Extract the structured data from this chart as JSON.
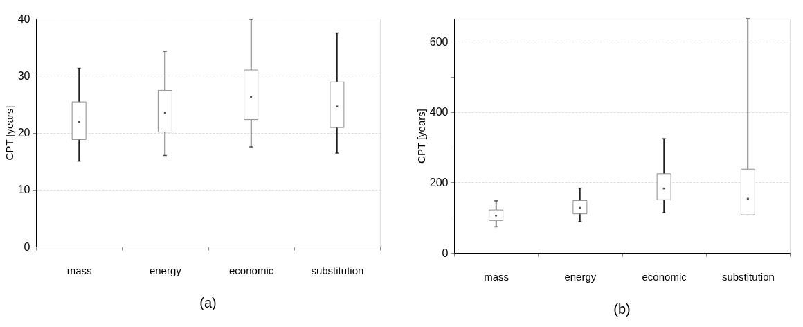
{
  "chart_data": [
    {
      "type": "box",
      "ylabel": "CPT [years]",
      "categories": [
        "mass",
        "energy",
        "economic",
        "substitution"
      ],
      "ylim": [
        0,
        40
      ],
      "yticks": [
        0,
        10,
        20,
        30,
        40
      ],
      "grid": "y",
      "annotations": [
        "(a)"
      ],
      "boxes": [
        {
          "low": 15.0,
          "q1": 18.8,
          "median": 21.9,
          "q3": 25.4,
          "high": 31.3
        },
        {
          "low": 16.0,
          "q1": 20.1,
          "median": 23.5,
          "q3": 27.4,
          "high": 34.3
        },
        {
          "low": 17.5,
          "q1": 22.3,
          "median": 26.3,
          "q3": 31.0,
          "high": 39.9
        },
        {
          "low": 16.4,
          "q1": 20.9,
          "median": 24.6,
          "q3": 28.9,
          "high": 37.5
        }
      ]
    },
    {
      "type": "box",
      "ylabel": "CPT [years]",
      "categories": [
        "mass",
        "energy",
        "economic",
        "substitution"
      ],
      "ylim": [
        0,
        666
      ],
      "yticks": [
        0,
        {
          "value": 100,
          "label": null
        },
        200,
        {
          "value": 300,
          "label": null
        },
        400,
        {
          "value": 500,
          "label": null
        },
        600
      ],
      "grid": "y",
      "annotations": [
        "(b)"
      ],
      "boxes": [
        {
          "low": 74,
          "q1": 92,
          "median": 106,
          "q3": 122,
          "high": 148
        },
        {
          "low": 89,
          "q1": 111,
          "median": 128,
          "q3": 149,
          "high": 184
        },
        {
          "low": 114,
          "q1": 151,
          "median": 183,
          "q3": 225,
          "high": 325
        },
        {
          "low": 108,
          "q1": 108,
          "median": 154,
          "q3": 238,
          "high": 666
        }
      ]
    }
  ]
}
